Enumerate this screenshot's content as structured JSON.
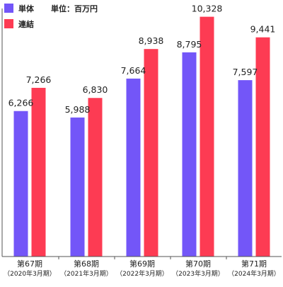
{
  "chart_data": {
    "type": "bar",
    "title": "",
    "xlabel": "",
    "ylabel": "",
    "unit": "単位：百万円",
    "categories": [
      "第67期",
      "第68期",
      "第69期",
      "第70期",
      "第71期"
    ],
    "category_sublabels": [
      "（2020年3月期）",
      "（2021年3月期）",
      "（2022年3月期）",
      "（2023年3月期）",
      "（2024年3月期）"
    ],
    "series": [
      {
        "name": "単体",
        "color": "#7356f8",
        "values": [
          6266,
          5988,
          7664,
          8795,
          7597
        ],
        "labels": [
          "6,266",
          "5,988",
          "7,664",
          "8,795",
          "7,597"
        ]
      },
      {
        "name": "連結",
        "color": "#fd3b53",
        "values": [
          7266,
          6830,
          8938,
          10328,
          9441
        ],
        "labels": [
          "7,266",
          "6,830",
          "8,938",
          "10,328",
          "9,441"
        ]
      }
    ],
    "ylim": [
      0,
      10500
    ],
    "grid": false,
    "legend_position": "top-left"
  }
}
